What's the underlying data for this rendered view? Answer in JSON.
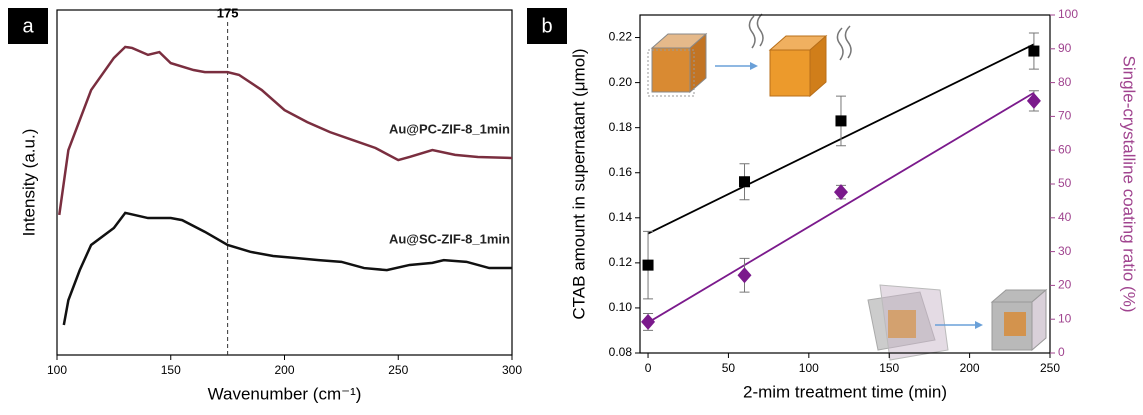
{
  "chart_data": [
    {
      "type": "line",
      "panel": "a",
      "xlabel": "Wavenumber (cm⁻¹)",
      "ylabel": "Intensity (a.u.)",
      "xlim": [
        100,
        300
      ],
      "xticks": [
        100,
        150,
        200,
        250,
        300
      ],
      "ylim": [
        0,
        100
      ],
      "vline": 175,
      "series": [
        {
          "name": "Au@PC-ZIF-8_1min",
          "color": "#7a2e3f",
          "x": [
            101,
            105,
            115,
            125,
            130,
            133,
            140,
            145,
            150,
            160,
            165,
            175,
            180,
            190,
            200,
            210,
            220,
            230,
            240,
            250,
            255,
            265,
            275,
            285,
            300
          ],
          "values": [
            40.6,
            59.4,
            76.8,
            86.1,
            89.3,
            89.0,
            87.0,
            87.8,
            84.6,
            82.6,
            82.0,
            82.0,
            81.2,
            76.8,
            71.0,
            67.5,
            64.6,
            62.3,
            60.0,
            56.5,
            57.4,
            59.4,
            58.0,
            57.4,
            57.1
          ]
        },
        {
          "name": "Au@SC-ZIF-8_1min",
          "color": "#111111",
          "x": [
            103,
            105,
            110,
            115,
            125,
            130,
            140,
            150,
            155,
            165,
            175,
            185,
            195,
            205,
            215,
            225,
            235,
            245,
            255,
            265,
            270,
            280,
            290,
            300
          ],
          "values": [
            8.7,
            15.9,
            24.6,
            31.9,
            36.8,
            41.2,
            39.7,
            39.7,
            39.1,
            35.7,
            31.9,
            29.9,
            28.7,
            28.1,
            27.5,
            27.0,
            25.2,
            24.6,
            26.1,
            26.7,
            27.5,
            27.0,
            25.2,
            25.2
          ]
        }
      ]
    },
    {
      "type": "scatter",
      "panel": "b",
      "xlabel": "2-mim treatment time (min)",
      "ylabel": "CTAB amount in supernatant (μmol)",
      "y2label": "Single-crystalline coating ratio (%)",
      "y2color": "#a0448f",
      "xlim": [
        -5,
        250
      ],
      "xticks": [
        0,
        50,
        100,
        150,
        200,
        250
      ],
      "ylim": [
        0.08,
        0.23
      ],
      "yticks": [
        {
          "value": 0.08,
          "label": "0.08"
        },
        {
          "value": 0.1,
          "label": "0.10"
        },
        0.12,
        0.14,
        0.16,
        0.18,
        {
          "value": 0.2,
          "label": "0.20"
        },
        0.22
      ],
      "y2lim": [
        0,
        100
      ],
      "y2ticks": [
        0,
        10,
        20,
        30,
        40,
        50,
        60,
        70,
        80,
        90,
        100
      ],
      "x": [
        0,
        60,
        120,
        240
      ],
      "series": [
        {
          "color": "#000000",
          "marker": "square",
          "values": [
            0.119,
            0.156,
            0.183,
            0.214
          ],
          "errors": [
            0.015,
            0.008,
            0.011,
            0.008
          ],
          "fit": {
            "x": [
              0,
              240
            ],
            "values": [
              0.133,
              0.217
            ]
          }
        },
        {
          "color": "#7b1a8c",
          "marker": "diamond",
          "axis": "y2",
          "values": [
            9.2,
            23,
            47.6,
            74.6
          ],
          "errors": [
            2.5,
            5,
            2,
            3
          ],
          "fit": {
            "x": [
              0,
              240
            ],
            "values": [
              9,
              77
            ]
          }
        }
      ]
    }
  ]
}
